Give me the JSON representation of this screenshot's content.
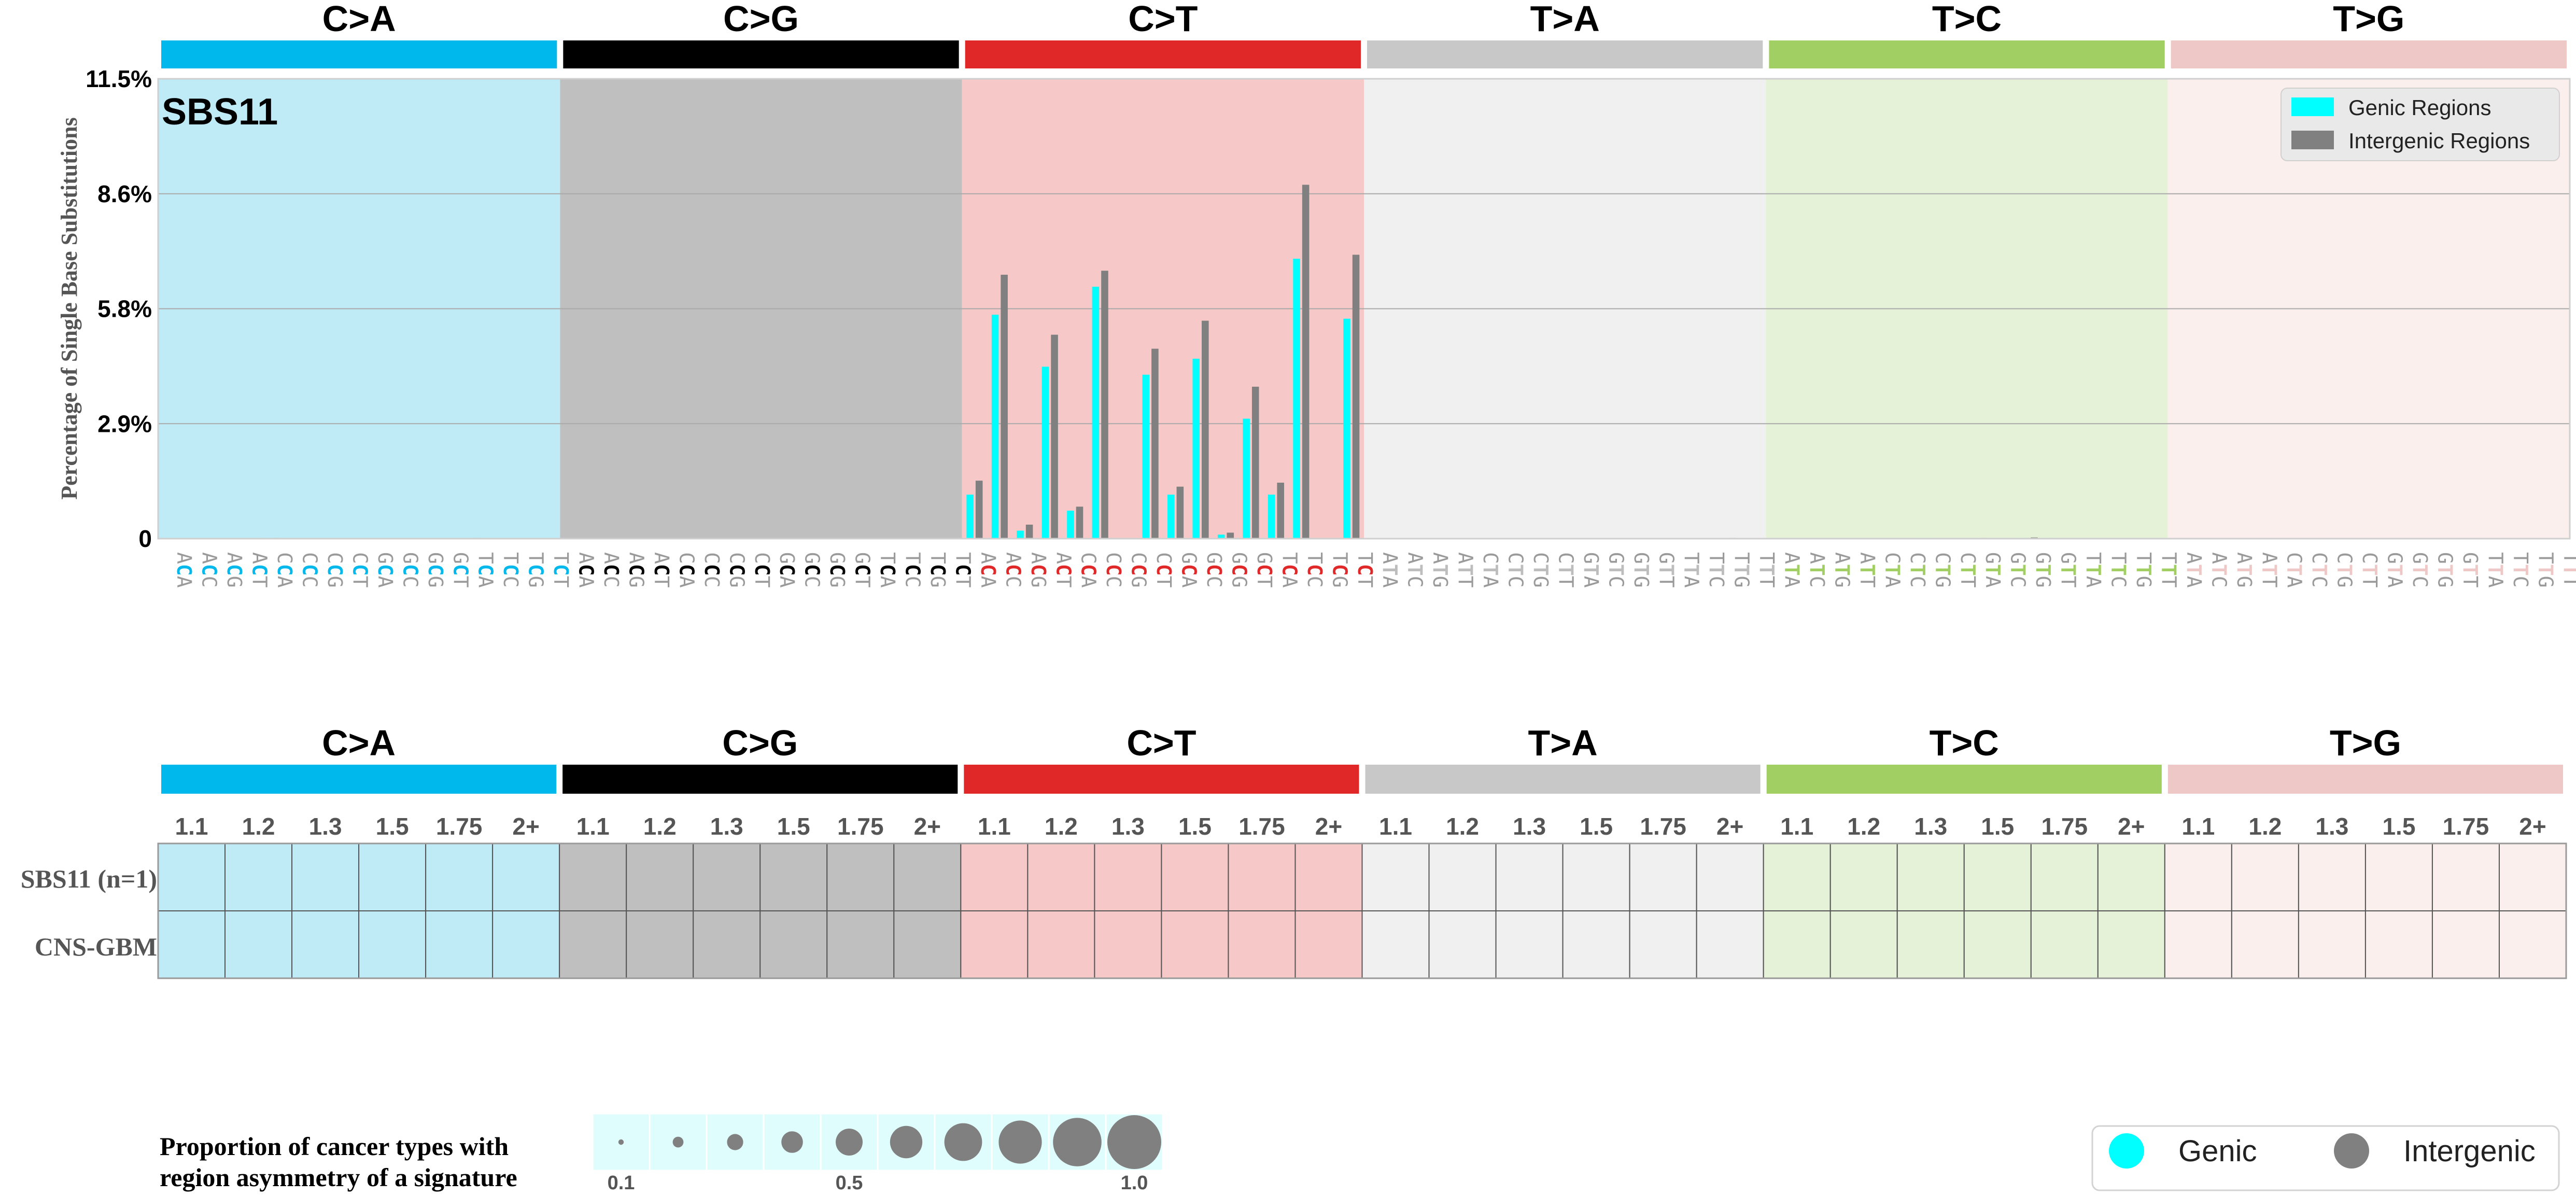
{
  "signature_label": "SBS11",
  "mutation_types": [
    {
      "name": "C>A",
      "bar_color": "#00b8ec",
      "bg_color": "#bfebf7",
      "letter_color": "#00b8ec"
    },
    {
      "name": "C>G",
      "bar_color": "#000000",
      "bg_color": "#bfbfbf",
      "letter_color": "#000000"
    },
    {
      "name": "C>T",
      "bar_color": "#e02828",
      "bg_color": "#f7c8c8",
      "letter_color": "#e02828"
    },
    {
      "name": "T>A",
      "bar_color": "#c8c8c8",
      "bg_color": "#f0f0f0",
      "letter_color": "#bdbdbd"
    },
    {
      "name": "T>C",
      "bar_color": "#a2cf63",
      "bg_color": "#e6f2d7",
      "letter_color": "#a2cf63"
    },
    {
      "name": "T>G",
      "bar_color": "#edc8c6",
      "bg_color": "#fbefed",
      "letter_color": "#edc8c6"
    }
  ],
  "chart_data": [
    {
      "type": "bar",
      "ylabel": "Percentage of Single Base Substitutions",
      "yticks": [
        "0",
        "2.9%",
        "5.8%",
        "8.6%",
        "11.5%"
      ],
      "ylim": [
        0,
        11.5
      ],
      "grid": true,
      "legend_position": "top-right",
      "series": [
        {
          "name": "Genic Regions",
          "color": "#00ffff",
          "values": [
            0,
            0,
            0,
            0,
            0.02,
            0,
            0,
            0,
            0,
            0,
            0,
            0,
            0,
            0,
            0,
            0,
            0,
            0,
            0,
            0,
            0,
            0,
            0,
            0,
            0,
            0,
            0,
            0,
            0,
            0,
            0,
            0,
            1.1,
            5.6,
            0.2,
            4.3,
            0.7,
            6.3,
            0,
            4.1,
            1.1,
            4.5,
            0.1,
            3.0,
            1.1,
            7.0,
            0,
            5.5,
            0,
            0,
            0,
            0,
            0,
            0,
            0,
            0,
            0,
            0,
            0,
            0,
            0,
            0,
            0,
            0,
            0,
            0,
            0,
            0,
            0,
            0,
            0.02,
            0,
            0,
            0,
            0.02,
            0.02,
            0,
            0,
            0,
            0,
            0,
            0,
            0,
            0,
            0,
            0,
            0,
            0,
            0,
            0,
            0,
            0,
            0,
            0,
            0,
            0
          ]
        },
        {
          "name": "Intergenic Regions",
          "color": "#808080",
          "values": [
            0,
            0,
            0,
            0,
            0.02,
            0,
            0,
            0,
            0,
            0,
            0,
            0,
            0.02,
            0,
            0,
            0,
            0,
            0,
            0,
            0,
            0,
            0,
            0,
            0,
            0,
            0,
            0,
            0,
            0,
            0,
            0,
            0,
            1.45,
            6.6,
            0.35,
            5.1,
            0.8,
            6.7,
            0,
            4.75,
            1.3,
            5.45,
            0.15,
            3.8,
            1.4,
            8.85,
            0,
            7.1,
            0,
            0,
            0,
            0,
            0,
            0,
            0,
            0,
            0,
            0,
            0,
            0,
            0,
            0,
            0.02,
            0,
            0,
            0,
            0,
            0,
            0,
            0,
            0,
            0,
            0.02,
            0,
            0.03,
            0,
            0,
            0,
            0,
            0,
            0,
            0,
            0,
            0,
            0,
            0,
            0,
            0,
            0,
            0,
            0,
            0,
            0,
            0
          ]
        }
      ],
      "contexts": [
        {
          "l": "A",
          "r": "A"
        },
        {
          "l": "A",
          "r": "C"
        },
        {
          "l": "A",
          "r": "G"
        },
        {
          "l": "A",
          "r": "T"
        },
        {
          "l": "C",
          "r": "A"
        },
        {
          "l": "C",
          "r": "C"
        },
        {
          "l": "C",
          "r": "G"
        },
        {
          "l": "C",
          "r": "T"
        },
        {
          "l": "G",
          "r": "A"
        },
        {
          "l": "G",
          "r": "C"
        },
        {
          "l": "G",
          "r": "G"
        },
        {
          "l": "G",
          "r": "T"
        },
        {
          "l": "T",
          "r": "A"
        },
        {
          "l": "T",
          "r": "C"
        },
        {
          "l": "T",
          "r": "G"
        },
        {
          "l": "T",
          "r": "T"
        }
      ]
    },
    {
      "type": "heatmap",
      "column_labels": [
        "1.1",
        "1.2",
        "1.3",
        "1.5",
        "1.75",
        "2+"
      ],
      "row_labels": [
        "SBS11 (n=1)",
        "CNS-GBM"
      ],
      "values": []
    }
  ],
  "size_legend": {
    "title_line1": "Proportion of cancer types with",
    "title_line2": "region asymmetry of a signature",
    "values": [
      0.1,
      0.2,
      0.3,
      0.4,
      0.5,
      0.6,
      0.7,
      0.8,
      0.9,
      1.0
    ],
    "tick_labels": [
      {
        "value": 0.1,
        "label": "0.1"
      },
      {
        "value": 0.5,
        "label": "0.5"
      },
      {
        "value": 1.0,
        "label": "1.0"
      }
    ]
  },
  "color_legend": [
    {
      "label": "Genic",
      "color": "#00ffff"
    },
    {
      "label": "Intergenic",
      "color": "#808080"
    }
  ]
}
